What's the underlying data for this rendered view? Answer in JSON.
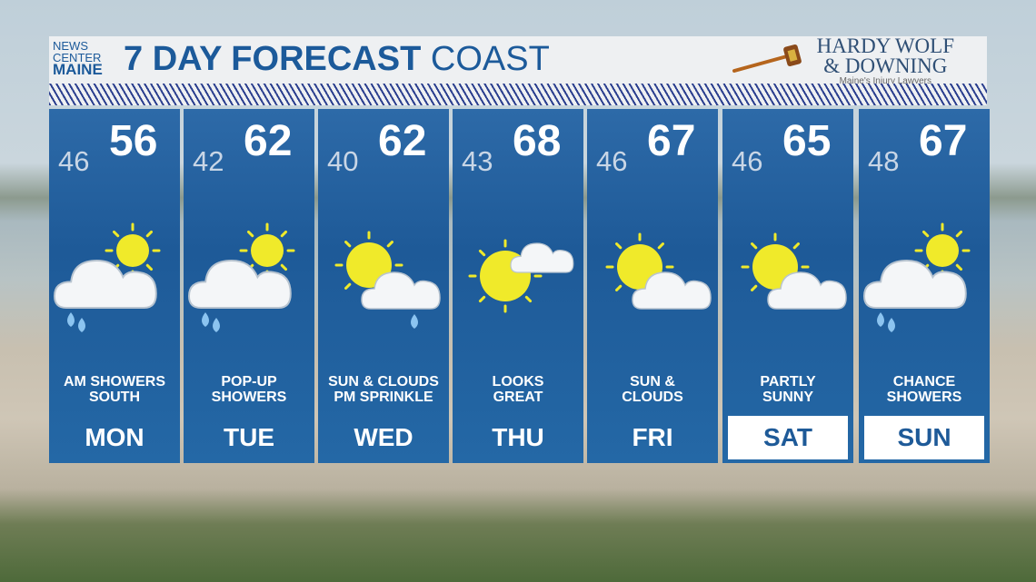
{
  "header": {
    "logo_line1": "NEWS",
    "logo_line2": "CENTER",
    "logo_line3": "MAINE",
    "title_bold": "7 DAY FORECAST",
    "title_light": "COAST",
    "sponsor_line1": "HARDY WOLF",
    "sponsor_line2": "& DOWNING",
    "sponsor_tagline": "Maine's Injury Lawyers"
  },
  "colors": {
    "panel": "#1e5a98",
    "header_text": "#1c5a9a",
    "sun": "#f0ea2a"
  },
  "days": [
    {
      "day": "MON",
      "lo": "46",
      "hi": "56",
      "desc1": "AM SHOWERS",
      "desc2": "SOUTH",
      "icon": "sun-cloud-rain",
      "weekend": false
    },
    {
      "day": "TUE",
      "lo": "42",
      "hi": "62",
      "desc1": "POP-UP",
      "desc2": "SHOWERS",
      "icon": "sun-cloud-rain",
      "weekend": false
    },
    {
      "day": "WED",
      "lo": "40",
      "hi": "62",
      "desc1": "SUN & CLOUDS",
      "desc2": "PM SPRINKLE",
      "icon": "sun-cloud-drop",
      "weekend": false
    },
    {
      "day": "THU",
      "lo": "43",
      "hi": "68",
      "desc1": "LOOKS",
      "desc2": "GREAT",
      "icon": "sun-small-cloud",
      "weekend": false
    },
    {
      "day": "FRI",
      "lo": "46",
      "hi": "67",
      "desc1": "SUN &",
      "desc2": "CLOUDS",
      "icon": "sun-cloud",
      "weekend": false
    },
    {
      "day": "SAT",
      "lo": "46",
      "hi": "65",
      "desc1": "PARTLY",
      "desc2": "SUNNY",
      "icon": "sun-cloud",
      "weekend": true
    },
    {
      "day": "SUN",
      "lo": "48",
      "hi": "67",
      "desc1": "CHANCE",
      "desc2": "SHOWERS",
      "icon": "sun-cloud-rain",
      "weekend": true
    }
  ]
}
